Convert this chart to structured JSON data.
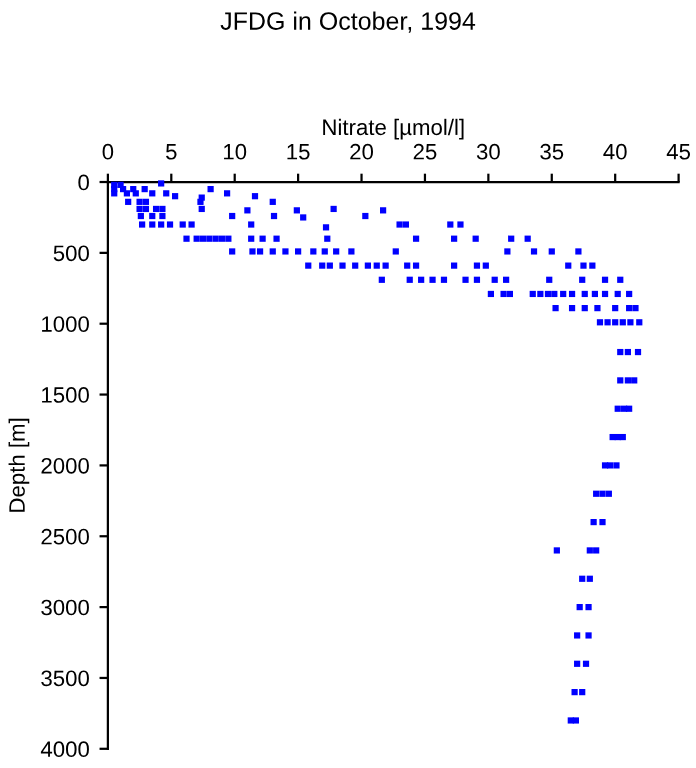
{
  "chart_data": {
    "type": "scatter",
    "title": "JFDG in October, 1994",
    "xlabel": "Nitrate [µmol/l]",
    "ylabel": "Depth [m]",
    "xlim": [
      0,
      45
    ],
    "xticks": [
      0,
      5,
      10,
      15,
      20,
      25,
      30,
      35,
      40,
      45
    ],
    "ylim": [
      4000,
      0
    ],
    "yticks": [
      0,
      500,
      1000,
      1500,
      2000,
      2500,
      3000,
      3500,
      4000
    ],
    "grid": false,
    "legend": false,
    "marker": "square",
    "series": [
      {
        "color": "#0000ff",
        "x": [
          0.5,
          1.0,
          4.2,
          0.5,
          1.2,
          2.0,
          2.9,
          8.1,
          0.5,
          1.5,
          2.2,
          3.5,
          4.6,
          5.3,
          7.4,
          9.4,
          11.6,
          1.6,
          2.5,
          3.0,
          7.3,
          13.0,
          2.5,
          3.0,
          3.8,
          4.3,
          7.4,
          11.0,
          14.9,
          17.8,
          21.7,
          2.6,
          3.5,
          4.3,
          9.8,
          13.1,
          15.4,
          20.3,
          2.7,
          3.5,
          4.2,
          4.9,
          5.9,
          6.6,
          11.3,
          23.0,
          23.5,
          27.0,
          27.8,
          17.2,
          6.2,
          7.0,
          7.5,
          8.0,
          8.5,
          9.0,
          9.5,
          11.3,
          12.2,
          13.3,
          17.3,
          24.3,
          27.3,
          29.0,
          31.8,
          33.1,
          9.8,
          11.4,
          12.0,
          13.0,
          14.0,
          15.0,
          16.2,
          17.1,
          18.0,
          19.2,
          22.7,
          31.5,
          33.6,
          35.0,
          37.1,
          15.8,
          16.9,
          17.5,
          18.5,
          19.5,
          20.5,
          21.2,
          21.9,
          23.6,
          24.3,
          27.3,
          29.1,
          29.8,
          36.3,
          37.5,
          38.2,
          21.6,
          23.8,
          24.7,
          25.6,
          26.5,
          28.2,
          29.1,
          30.5,
          31.4,
          34.8,
          37.4,
          39.2,
          40.4,
          30.2,
          31.2,
          31.7,
          33.5,
          34.1,
          34.7,
          35.2,
          35.9,
          36.6,
          37.6,
          38.4,
          39.2,
          40.2,
          41.1,
          35.3,
          36.6,
          37.6,
          38.6,
          40.0,
          41.1,
          41.6,
          38.8,
          39.4,
          40.0,
          40.6,
          41.2,
          41.9,
          40.4,
          41.0,
          41.8,
          40.4,
          41.0,
          41.5,
          40.2,
          40.7,
          41.1,
          39.8,
          40.2,
          40.6,
          39.2,
          39.6,
          40.1,
          38.5,
          39.0,
          39.5,
          38.3,
          39.0,
          38.0,
          38.5,
          35.4,
          37.4,
          38.0,
          37.2,
          37.9,
          37.0,
          37.9,
          37.0,
          37.7,
          36.8,
          37.4,
          36.5,
          36.9
        ],
        "values": [
          20,
          20,
          10,
          50,
          50,
          50,
          50,
          50,
          80,
          80,
          80,
          80,
          80,
          100,
          110,
          80,
          100,
          140,
          140,
          140,
          140,
          140,
          190,
          190,
          190,
          190,
          190,
          200,
          200,
          190,
          200,
          240,
          240,
          240,
          240,
          240,
          250,
          240,
          300,
          300,
          300,
          300,
          300,
          300,
          300,
          300,
          300,
          300,
          300,
          320,
          400,
          400,
          400,
          400,
          400,
          400,
          400,
          400,
          400,
          400,
          400,
          400,
          400,
          400,
          400,
          400,
          490,
          490,
          490,
          490,
          490,
          490,
          490,
          490,
          490,
          490,
          490,
          490,
          490,
          490,
          490,
          590,
          590,
          590,
          590,
          590,
          590,
          590,
          590,
          590,
          590,
          590,
          590,
          590,
          590,
          590,
          590,
          690,
          690,
          690,
          690,
          690,
          690,
          690,
          690,
          690,
          690,
          690,
          690,
          690,
          790,
          790,
          790,
          790,
          790,
          790,
          790,
          790,
          790,
          790,
          790,
          790,
          790,
          790,
          890,
          890,
          890,
          890,
          890,
          890,
          890,
          990,
          990,
          990,
          990,
          990,
          990,
          1200,
          1200,
          1200,
          1400,
          1400,
          1400,
          1600,
          1600,
          1600,
          1800,
          1800,
          1800,
          2000,
          2000,
          2000,
          2200,
          2200,
          2200,
          2400,
          2400,
          2600,
          2600,
          2600,
          2800,
          2800,
          3000,
          3000,
          3200,
          3200,
          3400,
          3400,
          3600,
          3600,
          3800,
          3800
        ]
      }
    ]
  }
}
